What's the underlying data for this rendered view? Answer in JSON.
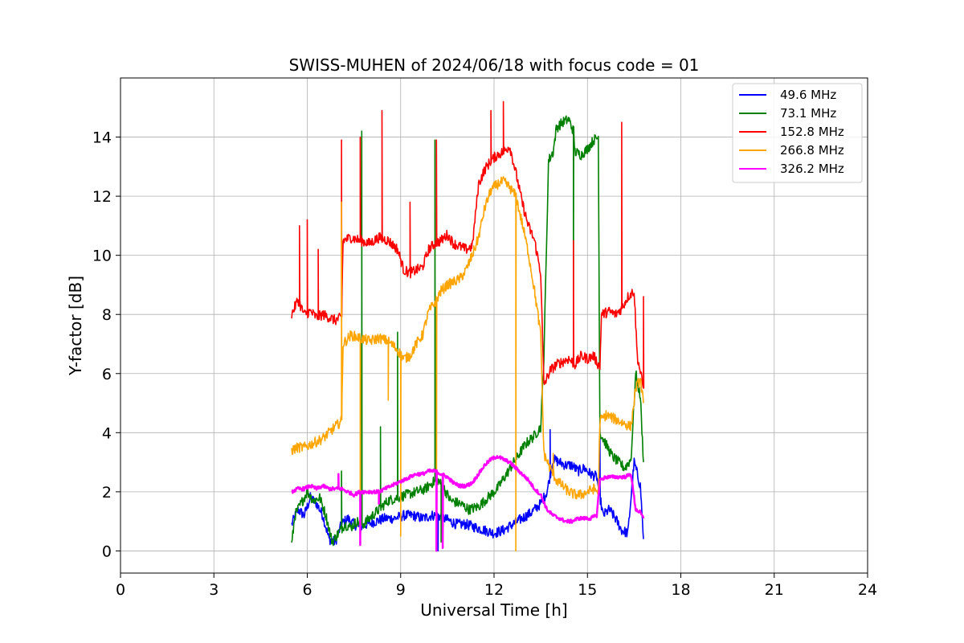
{
  "chart_data": {
    "type": "line",
    "title": "SWISS-MUHEN of 2024/06/18 with focus code = 01",
    "xlabel": "Universal Time [h]",
    "ylabel": "Y-factor [dB]",
    "xlim": [
      0,
      24
    ],
    "ylim": [
      -0.75,
      16.0
    ],
    "xticks": [
      0,
      3,
      6,
      9,
      12,
      15,
      18,
      21,
      24
    ],
    "yticks": [
      0,
      2,
      4,
      6,
      8,
      10,
      12,
      14
    ],
    "grid": true,
    "legend_position": "top-right",
    "series": [
      {
        "name": "49.6 MHz",
        "color": "#0000ff",
        "points": [
          [
            5.5,
            0.9
          ],
          [
            5.7,
            1.4
          ],
          [
            5.9,
            1.2
          ],
          [
            6.1,
            1.8
          ],
          [
            6.3,
            1.6
          ],
          [
            6.5,
            1.2
          ],
          [
            6.7,
            0.4
          ],
          [
            6.9,
            0.3
          ],
          [
            7.1,
            0.9
          ],
          [
            7.3,
            1.1
          ],
          [
            7.5,
            0.9
          ],
          [
            7.7,
            0.8
          ],
          [
            7.9,
            0.9
          ],
          [
            8.2,
            1.0
          ],
          [
            8.5,
            1.1
          ],
          [
            8.8,
            1.1
          ],
          [
            9.1,
            1.2
          ],
          [
            9.4,
            1.2
          ],
          [
            9.7,
            1.1
          ],
          [
            10.0,
            1.2
          ],
          [
            10.2,
            1.2
          ],
          [
            10.4,
            1.1
          ],
          [
            10.6,
            1.0
          ],
          [
            10.8,
            0.9
          ],
          [
            11.1,
            0.9
          ],
          [
            11.4,
            0.8
          ],
          [
            11.7,
            0.7
          ],
          [
            12.0,
            0.6
          ],
          [
            12.3,
            0.7
          ],
          [
            12.6,
            0.9
          ],
          [
            12.9,
            1.1
          ],
          [
            13.2,
            1.3
          ],
          [
            13.5,
            1.6
          ],
          [
            13.7,
            2.0
          ],
          [
            13.9,
            3.1
          ],
          [
            14.1,
            3.0
          ],
          [
            14.3,
            2.9
          ],
          [
            14.5,
            2.9
          ],
          [
            14.7,
            2.7
          ],
          [
            14.9,
            2.8
          ],
          [
            15.1,
            2.6
          ],
          [
            15.3,
            2.5
          ],
          [
            15.5,
            1.2
          ],
          [
            15.7,
            1.4
          ],
          [
            15.9,
            1.1
          ],
          [
            16.1,
            0.7
          ],
          [
            16.3,
            0.6
          ],
          [
            16.5,
            3.0
          ],
          [
            16.7,
            2.2
          ],
          [
            16.8,
            0.4
          ]
        ],
        "spikes": [
          [
            10.2,
            0.0
          ],
          [
            13.8,
            4.1
          ],
          [
            15.4,
            4.2
          ]
        ]
      },
      {
        "name": "73.1 MHz",
        "color": "#008000",
        "points": [
          [
            5.5,
            0.2
          ],
          [
            5.6,
            1.2
          ],
          [
            5.8,
            1.6
          ],
          [
            6.0,
            2.0
          ],
          [
            6.2,
            1.7
          ],
          [
            6.4,
            1.8
          ],
          [
            6.6,
            1.2
          ],
          [
            6.8,
            0.3
          ],
          [
            7.0,
            0.6
          ],
          [
            7.2,
            0.9
          ],
          [
            7.4,
            0.8
          ],
          [
            7.6,
            1.0
          ],
          [
            7.8,
            0.9
          ],
          [
            8.0,
            1.1
          ],
          [
            8.3,
            1.4
          ],
          [
            8.6,
            1.7
          ],
          [
            8.9,
            1.8
          ],
          [
            9.2,
            1.9
          ],
          [
            9.5,
            2.0
          ],
          [
            9.8,
            2.1
          ],
          [
            10.0,
            2.3
          ],
          [
            10.2,
            2.4
          ],
          [
            10.4,
            2.1
          ],
          [
            10.6,
            1.7
          ],
          [
            10.9,
            1.6
          ],
          [
            11.2,
            1.4
          ],
          [
            11.5,
            1.5
          ],
          [
            11.8,
            1.8
          ],
          [
            12.1,
            2.1
          ],
          [
            12.4,
            2.6
          ],
          [
            12.7,
            3.1
          ],
          [
            13.0,
            3.6
          ],
          [
            13.3,
            3.9
          ],
          [
            13.5,
            4.2
          ],
          [
            13.6,
            6.5
          ],
          [
            13.75,
            13.2
          ],
          [
            13.9,
            13.5
          ],
          [
            14.0,
            14.3
          ],
          [
            14.2,
            14.5
          ],
          [
            14.4,
            14.6
          ],
          [
            14.55,
            14.2
          ],
          [
            14.6,
            13.5
          ],
          [
            14.8,
            13.4
          ],
          [
            15.0,
            13.6
          ],
          [
            15.2,
            13.9
          ],
          [
            15.35,
            14.0
          ],
          [
            15.4,
            4.0
          ],
          [
            15.6,
            3.6
          ],
          [
            15.8,
            3.2
          ],
          [
            16.0,
            3.0
          ],
          [
            16.2,
            2.8
          ],
          [
            16.4,
            3.1
          ],
          [
            16.55,
            6.0
          ],
          [
            16.7,
            5.2
          ],
          [
            16.8,
            3.0
          ]
        ],
        "spikes": [
          [
            7.1,
            2.7
          ],
          [
            7.75,
            14.2
          ],
          [
            8.35,
            4.2
          ],
          [
            8.9,
            7.4
          ],
          [
            10.1,
            13.9
          ],
          [
            10.3,
            0.3
          ],
          [
            14.55,
            8.8
          ]
        ]
      },
      {
        "name": "152.8 MHz",
        "color": "#ff0000",
        "points": [
          [
            5.5,
            8.0
          ],
          [
            5.7,
            8.5
          ],
          [
            5.9,
            8.0
          ],
          [
            6.1,
            8.1
          ],
          [
            6.3,
            7.9
          ],
          [
            6.5,
            8.0
          ],
          [
            6.7,
            7.9
          ],
          [
            6.9,
            7.8
          ],
          [
            7.1,
            7.9
          ],
          [
            7.15,
            10.5
          ],
          [
            7.4,
            10.6
          ],
          [
            7.7,
            10.5
          ],
          [
            8.0,
            10.4
          ],
          [
            8.3,
            10.6
          ],
          [
            8.6,
            10.5
          ],
          [
            8.9,
            10.2
          ],
          [
            9.1,
            9.5
          ],
          [
            9.3,
            9.4
          ],
          [
            9.5,
            9.5
          ],
          [
            9.7,
            9.6
          ],
          [
            9.9,
            10.2
          ],
          [
            10.1,
            10.4
          ],
          [
            10.3,
            10.5
          ],
          [
            10.5,
            10.7
          ],
          [
            10.7,
            10.4
          ],
          [
            10.9,
            10.3
          ],
          [
            11.1,
            10.2
          ],
          [
            11.3,
            10.3
          ],
          [
            11.5,
            12.4
          ],
          [
            11.7,
            12.9
          ],
          [
            11.9,
            13.2
          ],
          [
            12.1,
            13.4
          ],
          [
            12.3,
            13.5
          ],
          [
            12.5,
            13.7
          ],
          [
            12.7,
            12.8
          ],
          [
            12.9,
            11.8
          ],
          [
            13.1,
            11.0
          ],
          [
            13.3,
            10.5
          ],
          [
            13.5,
            9.4
          ],
          [
            13.6,
            5.6
          ],
          [
            13.8,
            6.1
          ],
          [
            14.0,
            6.3
          ],
          [
            14.2,
            6.4
          ],
          [
            14.4,
            6.5
          ],
          [
            14.6,
            6.3
          ],
          [
            14.8,
            6.6
          ],
          [
            15.0,
            6.5
          ],
          [
            15.2,
            6.6
          ],
          [
            15.4,
            6.2
          ],
          [
            15.45,
            8.0
          ],
          [
            15.7,
            8.1
          ],
          [
            15.9,
            8.0
          ],
          [
            16.1,
            8.2
          ],
          [
            16.3,
            8.6
          ],
          [
            16.5,
            8.8
          ],
          [
            16.6,
            6.6
          ],
          [
            16.8,
            5.5
          ]
        ],
        "spikes": [
          [
            5.75,
            11.0
          ],
          [
            6.0,
            11.2
          ],
          [
            6.35,
            10.2
          ],
          [
            7.1,
            13.9
          ],
          [
            7.7,
            14.0
          ],
          [
            8.4,
            14.9
          ],
          [
            9.3,
            11.8
          ],
          [
            10.15,
            13.9
          ],
          [
            11.9,
            14.9
          ],
          [
            12.3,
            15.2
          ],
          [
            14.55,
            10.5
          ],
          [
            16.1,
            14.5
          ],
          [
            16.8,
            8.6
          ]
        ]
      },
      {
        "name": "266.8 MHz",
        "color": "#ffa500",
        "points": [
          [
            5.5,
            3.4
          ],
          [
            5.7,
            3.5
          ],
          [
            5.9,
            3.5
          ],
          [
            6.1,
            3.6
          ],
          [
            6.3,
            3.7
          ],
          [
            6.5,
            3.8
          ],
          [
            6.7,
            4.0
          ],
          [
            6.9,
            4.2
          ],
          [
            7.1,
            4.4
          ],
          [
            7.15,
            7.0
          ],
          [
            7.4,
            7.3
          ],
          [
            7.7,
            7.2
          ],
          [
            8.0,
            7.1
          ],
          [
            8.3,
            7.2
          ],
          [
            8.6,
            7.1
          ],
          [
            8.9,
            6.8
          ],
          [
            9.1,
            6.5
          ],
          [
            9.3,
            6.6
          ],
          [
            9.5,
            7.0
          ],
          [
            9.7,
            7.3
          ],
          [
            9.9,
            8.1
          ],
          [
            10.1,
            8.4
          ],
          [
            10.3,
            8.8
          ],
          [
            10.5,
            9.0
          ],
          [
            10.7,
            9.1
          ],
          [
            10.9,
            9.2
          ],
          [
            11.1,
            9.5
          ],
          [
            11.3,
            10.0
          ],
          [
            11.5,
            10.6
          ],
          [
            11.7,
            11.6
          ],
          [
            11.9,
            12.2
          ],
          [
            12.1,
            12.4
          ],
          [
            12.3,
            12.5
          ],
          [
            12.5,
            12.3
          ],
          [
            12.7,
            12.0
          ],
          [
            12.9,
            11.1
          ],
          [
            13.1,
            10.1
          ],
          [
            13.3,
            8.8
          ],
          [
            13.5,
            7.3
          ],
          [
            13.6,
            3.3
          ],
          [
            13.8,
            2.8
          ],
          [
            14.0,
            2.4
          ],
          [
            14.2,
            2.2
          ],
          [
            14.4,
            2.0
          ],
          [
            14.6,
            1.9
          ],
          [
            14.8,
            1.9
          ],
          [
            15.0,
            2.0
          ],
          [
            15.2,
            2.1
          ],
          [
            15.35,
            2.0
          ],
          [
            15.4,
            4.4
          ],
          [
            15.6,
            4.6
          ],
          [
            15.8,
            4.5
          ],
          [
            16.0,
            4.4
          ],
          [
            16.2,
            4.3
          ],
          [
            16.4,
            4.2
          ],
          [
            16.55,
            5.5
          ],
          [
            16.7,
            5.8
          ],
          [
            16.8,
            5.0
          ]
        ],
        "spikes": [
          [
            7.1,
            11.8
          ],
          [
            7.7,
            0.4
          ],
          [
            8.6,
            5.1
          ],
          [
            9.0,
            0.5
          ],
          [
            10.15,
            0.0
          ],
          [
            12.7,
            0.0
          ],
          [
            13.9,
            3.3
          ]
        ]
      },
      {
        "name": "326.2 MHz",
        "color": "#ff00ff",
        "points": [
          [
            5.5,
            2.0
          ],
          [
            5.7,
            2.1
          ],
          [
            5.9,
            2.1
          ],
          [
            6.1,
            2.2
          ],
          [
            6.3,
            2.1
          ],
          [
            6.5,
            2.2
          ],
          [
            6.7,
            2.1
          ],
          [
            6.9,
            2.1
          ],
          [
            7.1,
            2.1
          ],
          [
            7.3,
            2.0
          ],
          [
            7.5,
            1.9
          ],
          [
            7.7,
            2.0
          ],
          [
            7.9,
            2.0
          ],
          [
            8.1,
            2.0
          ],
          [
            8.3,
            2.0
          ],
          [
            8.5,
            2.1
          ],
          [
            8.7,
            2.2
          ],
          [
            8.9,
            2.3
          ],
          [
            9.1,
            2.4
          ],
          [
            9.3,
            2.5
          ],
          [
            9.5,
            2.6
          ],
          [
            9.7,
            2.6
          ],
          [
            9.9,
            2.7
          ],
          [
            10.1,
            2.7
          ],
          [
            10.3,
            2.6
          ],
          [
            10.5,
            2.5
          ],
          [
            10.7,
            2.3
          ],
          [
            10.9,
            2.2
          ],
          [
            11.1,
            2.2
          ],
          [
            11.3,
            2.3
          ],
          [
            11.5,
            2.6
          ],
          [
            11.7,
            2.9
          ],
          [
            11.9,
            3.1
          ],
          [
            12.1,
            3.2
          ],
          [
            12.3,
            3.1
          ],
          [
            12.5,
            3.0
          ],
          [
            12.7,
            2.8
          ],
          [
            12.9,
            2.6
          ],
          [
            13.1,
            2.4
          ],
          [
            13.3,
            2.1
          ],
          [
            13.5,
            1.9
          ],
          [
            13.7,
            1.4
          ],
          [
            13.9,
            1.2
          ],
          [
            14.1,
            1.1
          ],
          [
            14.3,
            1.0
          ],
          [
            14.5,
            1.0
          ],
          [
            14.7,
            1.1
          ],
          [
            14.9,
            1.1
          ],
          [
            15.1,
            1.1
          ],
          [
            15.3,
            1.2
          ],
          [
            15.4,
            2.4
          ],
          [
            15.6,
            2.5
          ],
          [
            15.8,
            2.5
          ],
          [
            16.0,
            2.5
          ],
          [
            16.2,
            2.5
          ],
          [
            16.4,
            2.6
          ],
          [
            16.55,
            1.4
          ],
          [
            16.7,
            1.3
          ],
          [
            16.8,
            1.1
          ]
        ],
        "spikes": [
          [
            7.0,
            2.6
          ],
          [
            7.7,
            0.2
          ],
          [
            8.3,
            1.6
          ],
          [
            10.15,
            0.0
          ],
          [
            10.35,
            0.1
          ]
        ]
      }
    ]
  }
}
